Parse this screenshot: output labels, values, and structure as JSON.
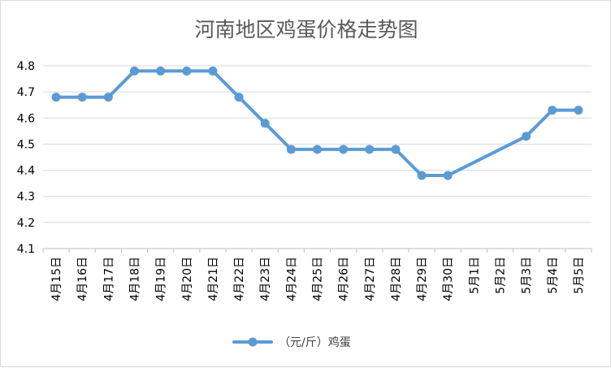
{
  "chart_data": {
    "type": "line",
    "title": "河南地区鸡蛋价格走势图",
    "xlabel": "",
    "ylabel": "",
    "ylim": [
      4.1,
      4.8
    ],
    "yticks": [
      "4.1",
      "4.2",
      "4.3",
      "4.4",
      "4.5",
      "4.6",
      "4.7",
      "4.8"
    ],
    "grid": true,
    "legend_position": "bottom",
    "categories": [
      "4月15日",
      "4月16日",
      "4月17日",
      "4月18日",
      "4月19日",
      "4月20日",
      "4月21日",
      "4月22日",
      "4月23日",
      "4月24日",
      "4月25日",
      "4月26日",
      "4月27日",
      "4月28日",
      "4月29日",
      "4月30日",
      "5月1日",
      "5月2日",
      "5月3日",
      "5月4日",
      "5月5日"
    ],
    "series": [
      {
        "name": "（元/斤）鸡蛋",
        "color": "#5b9bd5",
        "values": [
          4.68,
          4.68,
          4.68,
          4.78,
          4.78,
          4.78,
          4.78,
          4.68,
          4.58,
          4.48,
          4.48,
          4.48,
          4.48,
          4.48,
          4.38,
          4.38,
          null,
          null,
          4.53,
          4.63,
          4.63
        ]
      }
    ]
  }
}
